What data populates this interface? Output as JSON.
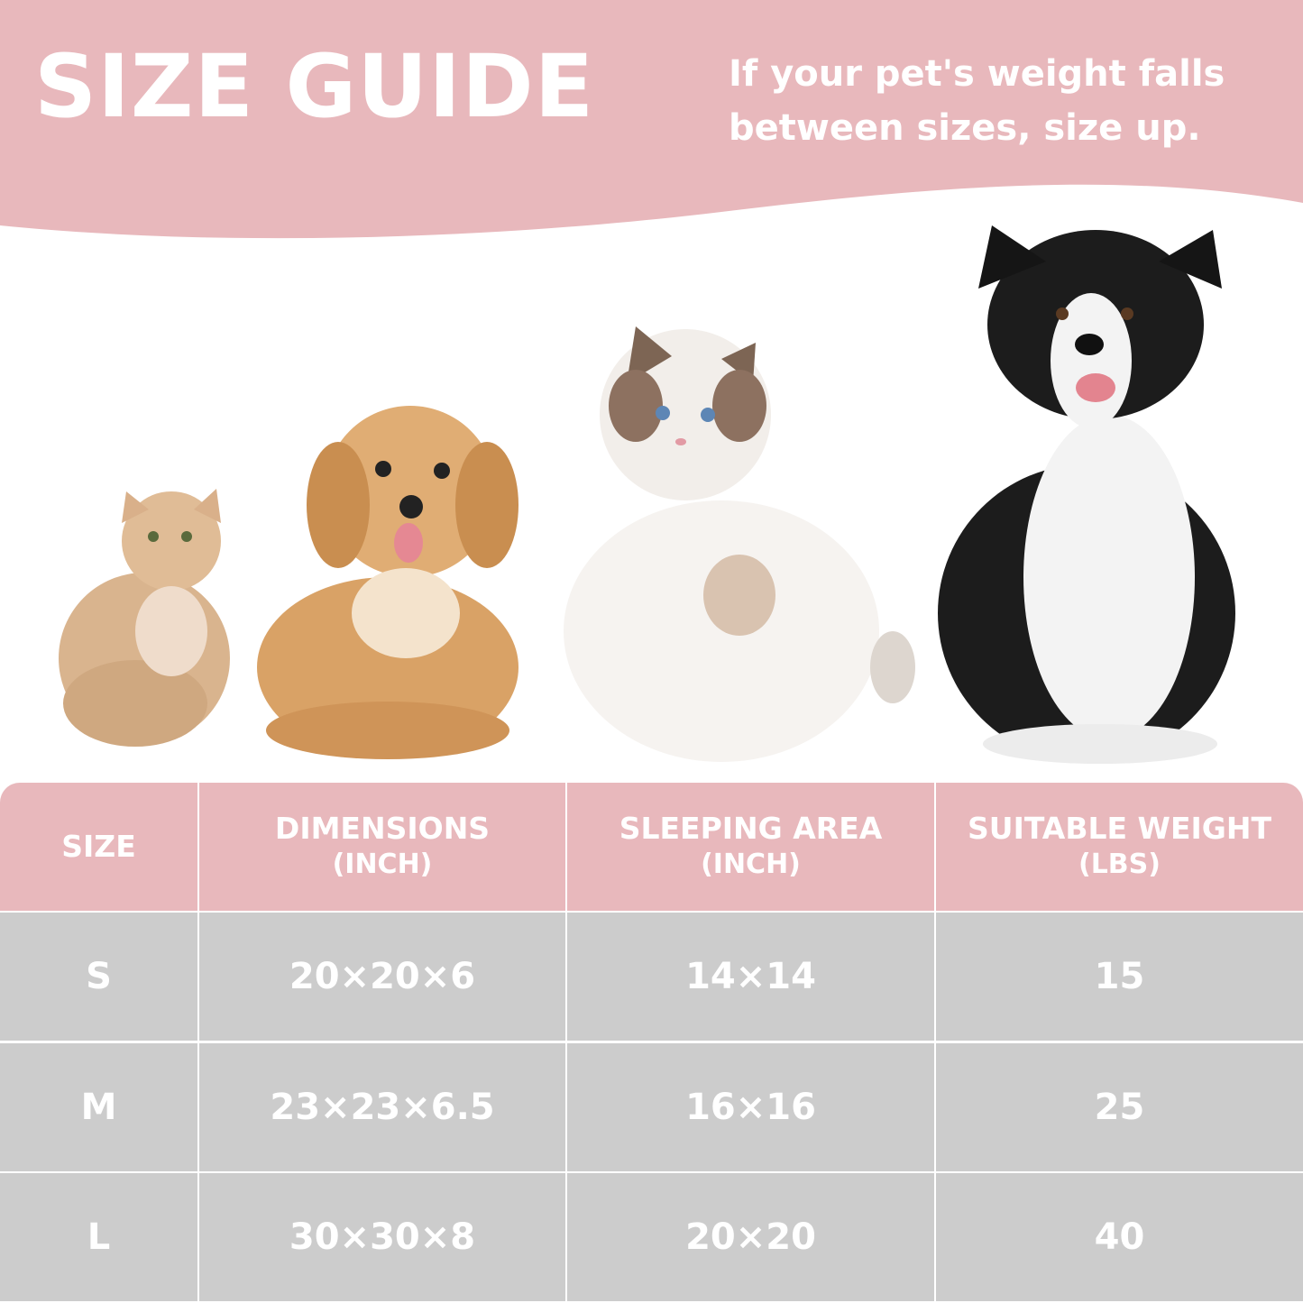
{
  "header": {
    "title": "SIZE GUIDE",
    "note_line1": "If your pet's weight falls",
    "note_line2": "between sizes, size up."
  },
  "colors": {
    "accent_pink": "#e8b8bc",
    "row_grey": "#cccccc",
    "text": "#ffffff"
  },
  "pets": [
    "small-cat",
    "small-dog",
    "large-cat",
    "large-dog"
  ],
  "table": {
    "columns": [
      {
        "label": "SIZE",
        "unit": ""
      },
      {
        "label": "DIMENSIONS",
        "unit": "(INCH)"
      },
      {
        "label": "SLEEPING AREA",
        "unit": "(INCH)"
      },
      {
        "label": "SUITABLE WEIGHT",
        "unit": "(LBS)"
      }
    ],
    "rows": [
      [
        "S",
        "20×20×6",
        "14×14",
        "15"
      ],
      [
        "M",
        "23×23×6.5",
        "16×16",
        "25"
      ],
      [
        "L",
        "30×30×8",
        "20×20",
        "40"
      ]
    ]
  }
}
